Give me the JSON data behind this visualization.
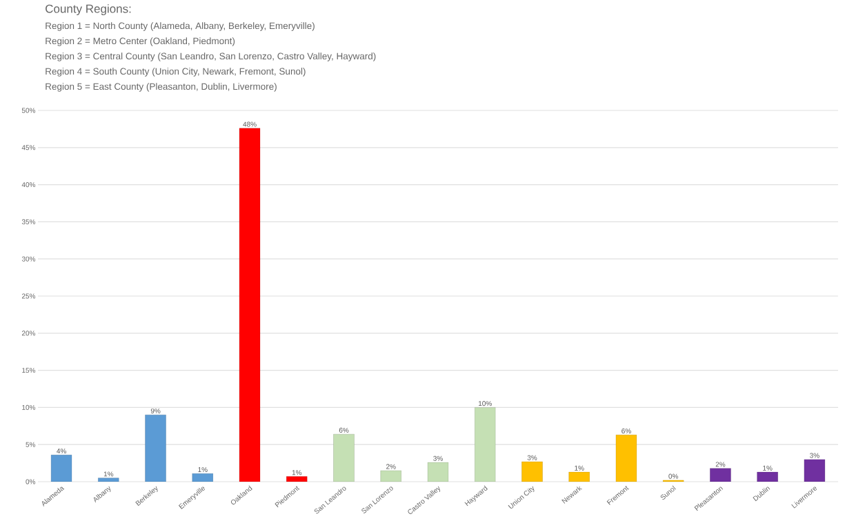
{
  "chart_data": {
    "type": "bar",
    "title": "County Regions:",
    "annotations": [
      "Region 1 = North County (Alameda, Albany, Berkeley, Emeryville)",
      "Region 2 = Metro Center (Oakland, Piedmont)",
      "Region 3 = Central County (San Leandro, San Lorenzo, Castro Valley, Hayward)",
      "Region 4 = South County (Union City, Newark, Fremont, Sunol)",
      "Region 5 = East County (Pleasanton, Dublin, Livermore)"
    ],
    "categories": [
      "Alameda",
      "Albany",
      "Berkeley",
      "Emeryville",
      "Oakland",
      "Piedmont",
      "San Leandro",
      "San Lorenzo",
      "Castro Valley",
      "Hayward",
      "Union City",
      "Newark",
      "Fremont",
      "Sunol",
      "Pleasanton",
      "Dublin",
      "Livermore"
    ],
    "values": [
      3.6,
      0.5,
      9,
      1.1,
      47.6,
      0.7,
      6.4,
      1.5,
      2.6,
      10,
      2.7,
      1.3,
      6.3,
      0.2,
      1.8,
      1.3,
      3
    ],
    "value_labels": [
      "4%",
      "1%",
      "9%",
      "1%",
      "48%",
      "1%",
      "6%",
      "2%",
      "3%",
      "10%",
      "3%",
      "1%",
      "6%",
      "0%",
      "2%",
      "1%",
      "3%"
    ],
    "colors": [
      "#5b9bd5",
      "#5b9bd5",
      "#5b9bd5",
      "#5b9bd5",
      "#ff0000",
      "#ff0000",
      "#c5e0b4",
      "#c5e0b4",
      "#c5e0b4",
      "#c5e0b4",
      "#ffc000",
      "#ffc000",
      "#ffc000",
      "#ffc000",
      "#7030a0",
      "#7030a0",
      "#7030a0"
    ],
    "ylim": [
      0,
      50
    ],
    "yticks": [
      {
        "value": 0,
        "label": "0%"
      },
      {
        "value": 5,
        "label": "5%"
      },
      {
        "value": 10,
        "label": "10%"
      },
      {
        "value": 15,
        "label": "15%"
      },
      {
        "value": 20,
        "label": "20%"
      },
      {
        "value": 25,
        "label": "25%"
      },
      {
        "value": 30,
        "label": "30%"
      },
      {
        "value": 35,
        "label": "35%"
      },
      {
        "value": 40,
        "label": "40%"
      },
      {
        "value": 45,
        "label": "45%"
      },
      {
        "value": 50,
        "label": "50%"
      }
    ],
    "grid": "y"
  }
}
